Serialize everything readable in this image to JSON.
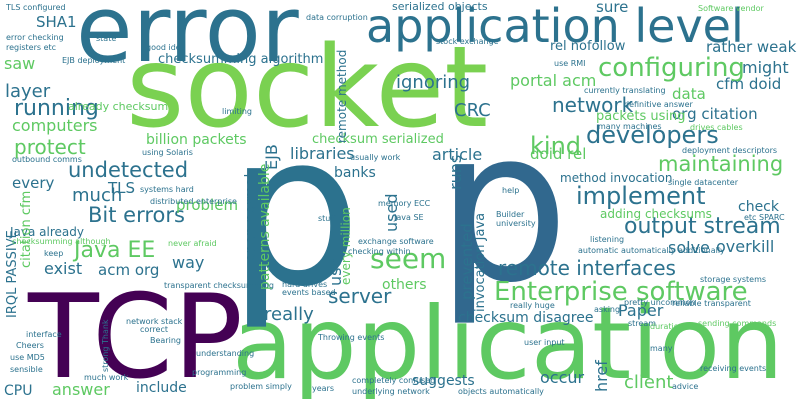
{
  "colors": {
    "background": "#ffffff",
    "palette": [
      "#440154",
      "#3b528b",
      "#2c728e",
      "#21918c",
      "#28ae80",
      "#5ec962",
      "#addc30",
      "#fde725"
    ]
  },
  "words": [
    {
      "text": "error",
      "color": "#2c728e"
    },
    {
      "text": "application level",
      "color": "#2c728e"
    },
    {
      "text": "socket",
      "color": "#7ad151"
    },
    {
      "text": "TCP",
      "color": "#440154"
    },
    {
      "text": "application",
      "color": "#5ec962"
    },
    {
      "text": "p",
      "color": "#31688e"
    },
    {
      "text": "p",
      "color": "#2c728e"
    },
    {
      "text": "Enterprise software",
      "color": "#5ec962"
    },
    {
      "text": "remote interfaces",
      "color": "#2c728e"
    },
    {
      "text": "output stream",
      "color": "#2c728e"
    },
    {
      "text": "network",
      "color": "#2c728e"
    },
    {
      "text": "configuring",
      "color": "#5ec962"
    },
    {
      "text": "developers",
      "color": "#2c728e"
    },
    {
      "text": "maintaining",
      "color": "#5ec962"
    },
    {
      "text": "implement",
      "color": "#2c728e"
    },
    {
      "text": "Bit errors",
      "color": "#2c728e"
    },
    {
      "text": "undetected",
      "color": "#2c728e"
    },
    {
      "text": "protect",
      "color": "#5ec962"
    },
    {
      "text": "Java EE",
      "color": "#5ec962"
    },
    {
      "text": "server",
      "color": "#2c728e"
    },
    {
      "text": "seem",
      "color": "#5ec962"
    },
    {
      "text": "kind",
      "color": "#5ec962"
    },
    {
      "text": "running",
      "color": "#2c728e"
    },
    {
      "text": "layer",
      "color": "#2c728e"
    },
    {
      "text": "computers",
      "color": "#5ec962"
    },
    {
      "text": "saw",
      "color": "#5ec962"
    },
    {
      "text": "SHA1",
      "color": "#2c728e"
    },
    {
      "text": "ignoring",
      "color": "#2c728e"
    },
    {
      "text": "CRC",
      "color": "#2c728e"
    },
    {
      "text": "might",
      "color": "#2c728e"
    },
    {
      "text": "rather weak",
      "color": "#2c728e"
    },
    {
      "text": "cfm doid",
      "color": "#2c728e"
    },
    {
      "text": "org citation",
      "color": "#2c728e"
    },
    {
      "text": "portal acm",
      "color": "#5ec962"
    },
    {
      "text": "data",
      "color": "#5ec962"
    },
    {
      "text": "packets using",
      "color": "#5ec962"
    },
    {
      "text": "checksumming algorithm",
      "color": "#2c728e"
    },
    {
      "text": "rel nofollow",
      "color": "#2c728e"
    },
    {
      "text": "sure",
      "color": "#2c728e"
    },
    {
      "text": "serialized objects",
      "color": "#2c728e"
    },
    {
      "text": "TLS",
      "color": "#2c728e"
    },
    {
      "text": "billion packets",
      "color": "#5ec962"
    },
    {
      "text": "libraries",
      "color": "#2c728e"
    },
    {
      "text": "article",
      "color": "#2c728e"
    },
    {
      "text": "doid rel",
      "color": "#5ec962"
    },
    {
      "text": "banks",
      "color": "#2c728e"
    },
    {
      "text": "problem",
      "color": "#5ec962"
    },
    {
      "text": "much",
      "color": "#2c728e"
    },
    {
      "text": "every",
      "color": "#2c728e"
    },
    {
      "text": "Java already",
      "color": "#2c728e"
    },
    {
      "text": "exist",
      "color": "#2c728e"
    },
    {
      "text": "acm org",
      "color": "#2c728e"
    },
    {
      "text": "way",
      "color": "#2c728e"
    },
    {
      "text": "check",
      "color": "#2c728e"
    },
    {
      "text": "solve",
      "color": "#2c728e"
    },
    {
      "text": "overkill",
      "color": "#2c728e"
    },
    {
      "text": "adding checksums",
      "color": "#5ec962"
    },
    {
      "text": "method invocation",
      "color": "#2c728e"
    },
    {
      "text": "checksum serialized",
      "color": "#5ec962"
    },
    {
      "text": "others",
      "color": "#5ec962"
    },
    {
      "text": "really",
      "color": "#2c728e"
    },
    {
      "text": "checksum disagree",
      "color": "#2c728e"
    },
    {
      "text": "Paper",
      "color": "#2c728e"
    },
    {
      "text": "suggests",
      "color": "#2c728e"
    },
    {
      "text": "occur",
      "color": "#2c728e"
    },
    {
      "text": "client",
      "color": "#5ec962"
    },
    {
      "text": "include",
      "color": "#2c728e"
    },
    {
      "text": "answer",
      "color": "#5ec962"
    },
    {
      "text": "CPU",
      "color": "#2c728e"
    },
    {
      "text": "already checksum",
      "color": "#5ec962"
    },
    {
      "text": "IRQL PASSIVE",
      "color": "#2c728e"
    },
    {
      "text": "citation cfm",
      "color": "#5ec962"
    },
    {
      "text": "EJB",
      "color": "#2c728e"
    },
    {
      "text": "open normal",
      "color": "#2c728e"
    },
    {
      "text": "patterns available",
      "color": "#5ec962"
    },
    {
      "text": "every million",
      "color": "#5ec962"
    },
    {
      "text": "use",
      "color": "#2c728e"
    },
    {
      "text": "prevented",
      "color": "#2c728e"
    },
    {
      "text": "invocation Java",
      "color": "#2c728e"
    },
    {
      "text": "runs",
      "color": "#2c728e"
    },
    {
      "text": "remote method",
      "color": "#2c728e"
    },
    {
      "text": "used",
      "color": "#2c728e"
    },
    {
      "text": "href",
      "color": "#2c728e"
    },
    {
      "text": "TLS configured",
      "color": "#2c728e"
    },
    {
      "text": "error checking",
      "color": "#2c728e"
    },
    {
      "text": "registers etc",
      "color": "#2c728e"
    },
    {
      "text": "EJB deployment",
      "color": "#2c728e"
    },
    {
      "text": "data corruption",
      "color": "#2c728e"
    },
    {
      "text": "stock exchange",
      "color": "#2c728e"
    },
    {
      "text": "currently translating",
      "color": "#2c728e"
    },
    {
      "text": "definitive answer",
      "color": "#2c728e"
    },
    {
      "text": "drives cables",
      "color": "#5ec962"
    },
    {
      "text": "many machines",
      "color": "#2c728e"
    },
    {
      "text": "deployment descriptors",
      "color": "#2c728e"
    },
    {
      "text": "single datacenter",
      "color": "#2c728e"
    },
    {
      "text": "etc SPARC",
      "color": "#2c728e"
    },
    {
      "text": "using Solaris",
      "color": "#2c728e"
    },
    {
      "text": "systems hard",
      "color": "#2c728e"
    },
    {
      "text": "distributed enterprise",
      "color": "#2c728e"
    },
    {
      "text": "usually work",
      "color": "#2c728e"
    },
    {
      "text": "memory ECC",
      "color": "#2c728e"
    },
    {
      "text": "Java SE",
      "color": "#2c728e"
    },
    {
      "text": "exchange software",
      "color": "#2c728e"
    },
    {
      "text": "checking within",
      "color": "#2c728e"
    },
    {
      "text": "never afraid",
      "color": "#5ec962"
    },
    {
      "text": "network stack",
      "color": "#2c728e"
    },
    {
      "text": "hard drives",
      "color": "#2c728e"
    },
    {
      "text": "events based",
      "color": "#2c728e"
    },
    {
      "text": "Throwing events",
      "color": "#2c728e"
    },
    {
      "text": "really huge",
      "color": "#2c728e"
    },
    {
      "text": "pretty uncommon",
      "color": "#2c728e"
    },
    {
      "text": "reliable transparent",
      "color": "#2c728e"
    },
    {
      "text": "sending commands",
      "color": "#5ec962"
    },
    {
      "text": "storage systems",
      "color": "#2c728e"
    },
    {
      "text": "Cheers",
      "color": "#2c728e"
    },
    {
      "text": "use MD5",
      "color": "#2c728e"
    },
    {
      "text": "sensible",
      "color": "#2c728e"
    },
    {
      "text": "much work",
      "color": "#2c728e"
    },
    {
      "text": "problem simply",
      "color": "#2c728e"
    },
    {
      "text": "completely confused",
      "color": "#2c728e"
    },
    {
      "text": "underlying network",
      "color": "#2c728e"
    },
    {
      "text": "objects automatically",
      "color": "#2c728e"
    },
    {
      "text": "user input",
      "color": "#2c728e"
    },
    {
      "text": "advice",
      "color": "#2c728e"
    },
    {
      "text": "programming",
      "color": "#2c728e"
    },
    {
      "text": "years",
      "color": "#2c728e"
    },
    {
      "text": "understanding",
      "color": "#2c728e"
    },
    {
      "text": "Software vendor",
      "color": "#5ec962"
    },
    {
      "text": "use RMI",
      "color": "#2c728e"
    },
    {
      "text": "outbound comms",
      "color": "#2c728e"
    },
    {
      "text": "checksumming although",
      "color": "#5ec962"
    },
    {
      "text": "transparent checksumming",
      "color": "#2c728e"
    },
    {
      "text": "automatic automatically additionally",
      "color": "#2c728e"
    },
    {
      "text": "listening",
      "color": "#2c728e"
    },
    {
      "text": "help",
      "color": "#2c728e"
    },
    {
      "text": "university",
      "color": "#2c728e"
    },
    {
      "text": "Builder",
      "color": "#2c728e"
    },
    {
      "text": "keep",
      "color": "#2c728e"
    },
    {
      "text": "interface",
      "color": "#2c728e"
    },
    {
      "text": "Bearing",
      "color": "#2c728e"
    },
    {
      "text": "many",
      "color": "#2c728e"
    },
    {
      "text": "receiving events",
      "color": "#2c728e"
    },
    {
      "text": "correct",
      "color": "#2c728e"
    },
    {
      "text": "good idea",
      "color": "#2c728e"
    },
    {
      "text": "stuff",
      "color": "#2c728e"
    },
    {
      "text": "asking",
      "color": "#2c728e"
    },
    {
      "text": "stream",
      "color": "#2c728e"
    },
    {
      "text": "duration",
      "color": "#5ec962"
    },
    {
      "text": "state",
      "color": "#2c728e"
    },
    {
      "text": "strong Thank",
      "color": "#2c728e"
    },
    {
      "text": "limiting",
      "color": "#2c728e"
    }
  ]
}
